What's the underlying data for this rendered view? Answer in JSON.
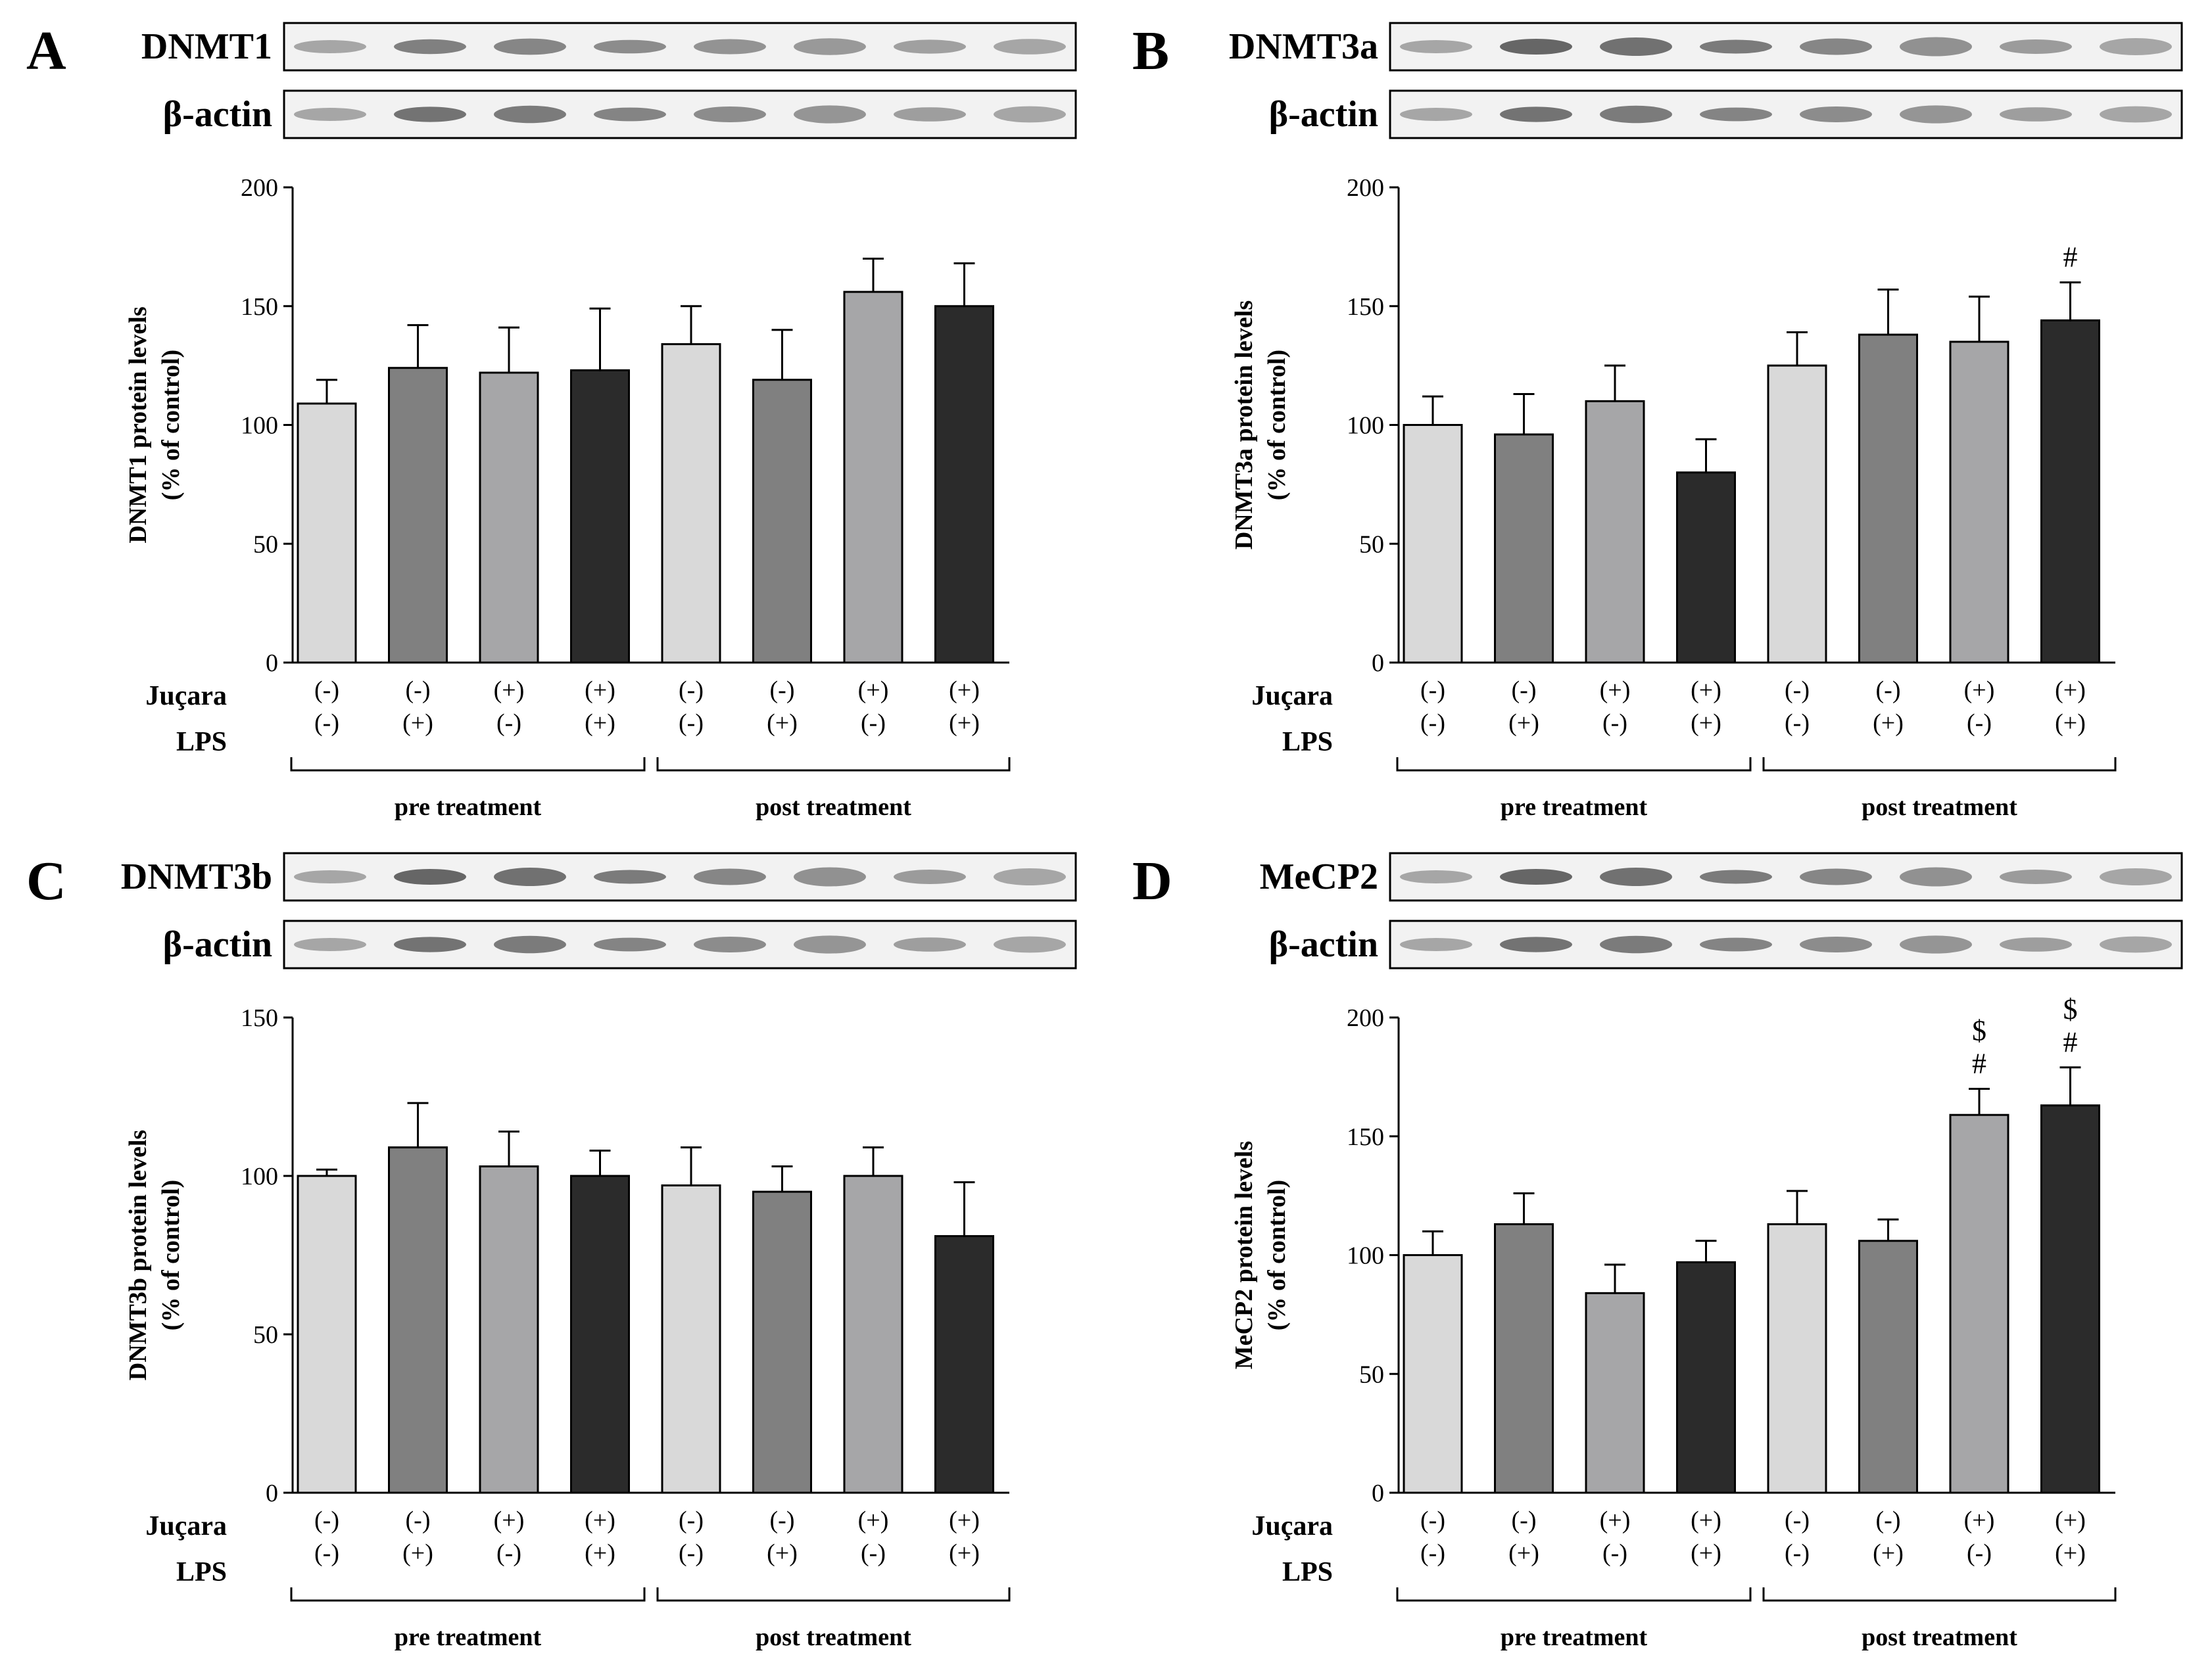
{
  "figure": {
    "row_labels": [
      "Juçara",
      "LPS"
    ],
    "juçara": [
      "(-)",
      "(-)",
      "(+)",
      "(+)",
      "(-)",
      "(-)",
      "(+)",
      "(+)"
    ],
    "lps": [
      "(-)",
      "(+)",
      "(-)",
      "(+)",
      "(-)",
      "(+)",
      "(-)",
      "(+)"
    ],
    "groups": [
      "pre treatment",
      "post treatment"
    ],
    "loading_control": "β-actin",
    "colors": {
      "bar_fills": [
        "#d9d9d9",
        "#808080",
        "#a6a6a8",
        "#2b2b2b",
        "#d9d9d9",
        "#808080",
        "#a6a6a8",
        "#2b2b2b"
      ],
      "axis": "#000000",
      "blot_bg": "#f2f2f2"
    }
  },
  "chart_data": [
    {
      "type": "bar",
      "panel": "A",
      "blot_label": "DNMT1",
      "ylabel_line1": "DNMT1 protein levels",
      "ylabel_line2": "(% of control)",
      "ylim": [
        0,
        200
      ],
      "yticks": [
        "0",
        "50",
        "100",
        "150",
        "200"
      ],
      "values": [
        109,
        124,
        122,
        123,
        134,
        119,
        156,
        150
      ],
      "errors": [
        10,
        18,
        19,
        26,
        16,
        21,
        14,
        18
      ],
      "annotations": [
        [],
        [],
        [],
        [],
        [],
        [],
        [],
        []
      ]
    },
    {
      "type": "bar",
      "panel": "B",
      "blot_label": "DNMT3a",
      "ylabel_line1": "DNMT3a protein levels",
      "ylabel_line2": "(% of control)",
      "ylim": [
        0,
        200
      ],
      "yticks": [
        "0",
        "50",
        "100",
        "150",
        "200"
      ],
      "values": [
        100,
        96,
        110,
        80,
        125,
        138,
        135,
        144
      ],
      "errors": [
        12,
        17,
        15,
        14,
        14,
        19,
        19,
        16
      ],
      "annotations": [
        [],
        [],
        [],
        [],
        [],
        [],
        [],
        [
          "#"
        ]
      ]
    },
    {
      "type": "bar",
      "panel": "C",
      "blot_label": "DNMT3b",
      "ylabel_line1": "DNMT3b protein levels",
      "ylabel_line2": "(% of control)",
      "ylim": [
        0,
        150
      ],
      "yticks": [
        "0",
        "50",
        "100",
        "150"
      ],
      "values": [
        100,
        109,
        103,
        100,
        97,
        95,
        100,
        81
      ],
      "errors": [
        2,
        14,
        11,
        8,
        12,
        8,
        9,
        17
      ],
      "annotations": [
        [],
        [],
        [],
        [],
        [],
        [],
        [],
        []
      ]
    },
    {
      "type": "bar",
      "panel": "D",
      "blot_label": "MeCP2",
      "ylabel_line1": "MeCP2 protein levels",
      "ylabel_line2": "(% of control)",
      "ylim": [
        0,
        200
      ],
      "yticks": [
        "0",
        "50",
        "100",
        "150",
        "200"
      ],
      "values": [
        100,
        113,
        84,
        97,
        113,
        106,
        159,
        163
      ],
      "errors": [
        10,
        13,
        12,
        9,
        14,
        9,
        11,
        16
      ],
      "annotations": [
        [],
        [],
        [],
        [],
        [],
        [],
        [
          "$",
          "#"
        ],
        [
          "$",
          "#"
        ]
      ]
    }
  ]
}
